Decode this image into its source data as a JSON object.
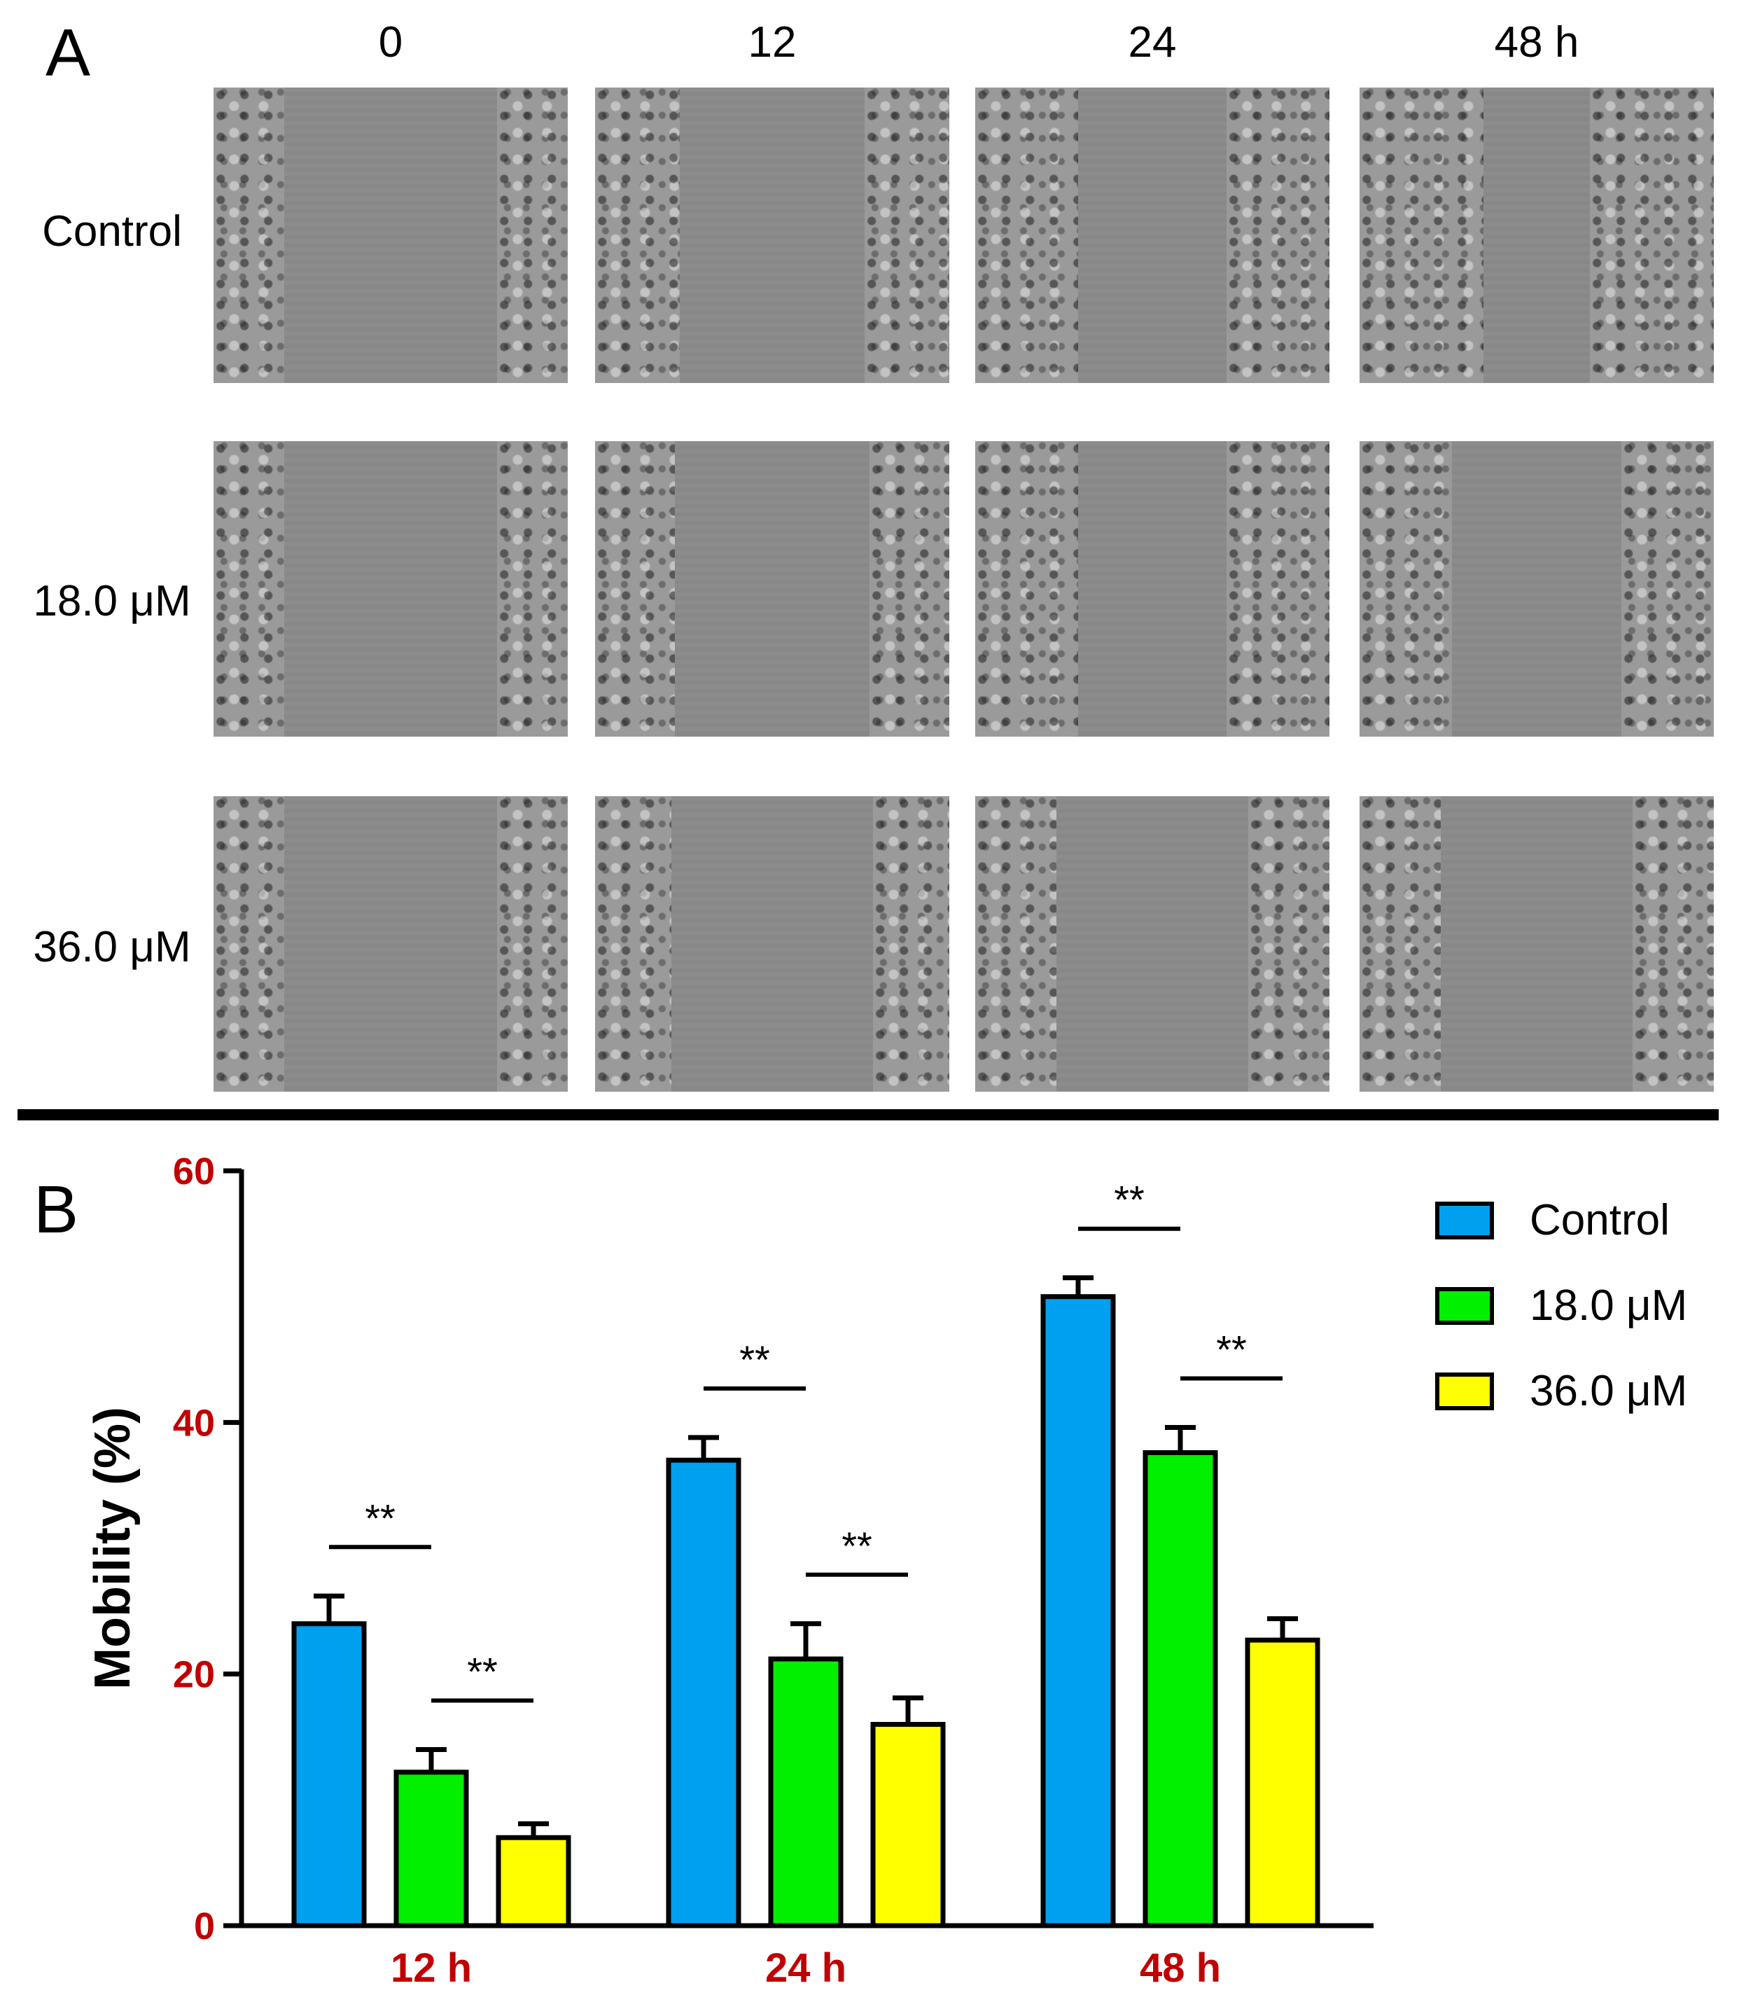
{
  "panel_a": {
    "letter": "A",
    "columns": [
      "0",
      "12",
      "24",
      "48 h"
    ],
    "rows": [
      "Control",
      "18.0 μM",
      "36.0 μM"
    ]
  },
  "panel_b": {
    "letter": "B",
    "significance_marker": "**"
  },
  "colors": {
    "control": "#00A0F0",
    "dose_18": "#00F000",
    "dose_36": "#FFFF00",
    "tick_red": "#C00000"
  },
  "chart_data": {
    "type": "bar",
    "categories": [
      "12 h",
      "24 h",
      "48 h"
    ],
    "series": [
      {
        "name": "Control",
        "values": [
          24,
          37,
          50
        ],
        "errors": [
          2.2,
          1.8,
          1.5
        ]
      },
      {
        "name": "18.0 μM",
        "values": [
          12.2,
          21.2,
          37.6
        ],
        "errors": [
          1.8,
          2.8,
          2.0
        ]
      },
      {
        "name": "36.0 μM",
        "values": [
          7,
          16,
          22.7
        ],
        "errors": [
          1.1,
          2.1,
          1.7
        ]
      }
    ],
    "ylabel": "Mobility (%)",
    "ylim": [
      0,
      60
    ],
    "yticks": [
      0,
      20,
      40,
      60
    ],
    "significance": [
      {
        "category": "12 h",
        "from": "Control",
        "to": "18.0 μM",
        "label": "**"
      },
      {
        "category": "12 h",
        "from": "18.0 μM",
        "to": "36.0 μM",
        "label": "**"
      },
      {
        "category": "24 h",
        "from": "Control",
        "to": "18.0 μM",
        "label": "**"
      },
      {
        "category": "24 h",
        "from": "18.0 μM",
        "to": "36.0 μM",
        "label": "**"
      },
      {
        "category": "48 h",
        "from": "Control",
        "to": "18.0 μM",
        "label": "**"
      },
      {
        "category": "48 h",
        "from": "18.0 μM",
        "to": "36.0 μM",
        "label": "**"
      }
    ],
    "legend_position": "top-right",
    "grid": false
  }
}
